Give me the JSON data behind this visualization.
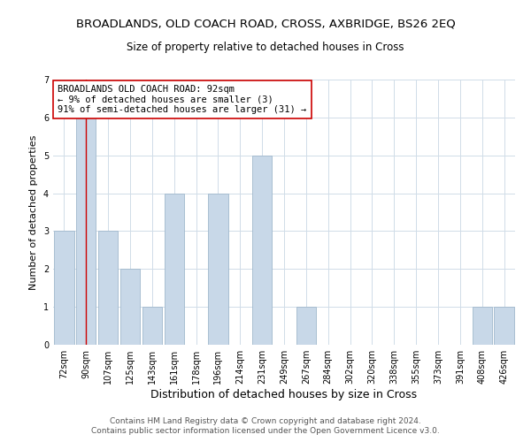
{
  "title": "BROADLANDS, OLD COACH ROAD, CROSS, AXBRIDGE, BS26 2EQ",
  "subtitle": "Size of property relative to detached houses in Cross",
  "xlabel": "Distribution of detached houses by size in Cross",
  "ylabel": "Number of detached properties",
  "bin_labels": [
    "72sqm",
    "90sqm",
    "107sqm",
    "125sqm",
    "143sqm",
    "161sqm",
    "178sqm",
    "196sqm",
    "214sqm",
    "231sqm",
    "249sqm",
    "267sqm",
    "284sqm",
    "302sqm",
    "320sqm",
    "338sqm",
    "355sqm",
    "373sqm",
    "391sqm",
    "408sqm",
    "426sqm"
  ],
  "bar_heights": [
    3,
    6,
    3,
    2,
    1,
    4,
    0,
    4,
    0,
    5,
    0,
    1,
    0,
    0,
    0,
    0,
    0,
    0,
    0,
    1,
    1
  ],
  "bar_color": "#c8d8e8",
  "bar_edge_color": "#a0b8cc",
  "vline_x_index": 1,
  "vline_color": "#cc0000",
  "ylim": [
    0,
    7
  ],
  "yticks": [
    0,
    1,
    2,
    3,
    4,
    5,
    6,
    7
  ],
  "annotation_text": "BROADLANDS OLD COACH ROAD: 92sqm\n← 9% of detached houses are smaller (3)\n91% of semi-detached houses are larger (31) →",
  "annotation_box_edge": "#cc0000",
  "footer_line1": "Contains HM Land Registry data © Crown copyright and database right 2024.",
  "footer_line2": "Contains public sector information licensed under the Open Government Licence v3.0.",
  "background_color": "#ffffff",
  "grid_color": "#d0dce8",
  "title_fontsize": 9.5,
  "subtitle_fontsize": 8.5,
  "xlabel_fontsize": 9,
  "ylabel_fontsize": 8,
  "tick_fontsize": 7,
  "annotation_fontsize": 7.5,
  "footer_fontsize": 6.5
}
